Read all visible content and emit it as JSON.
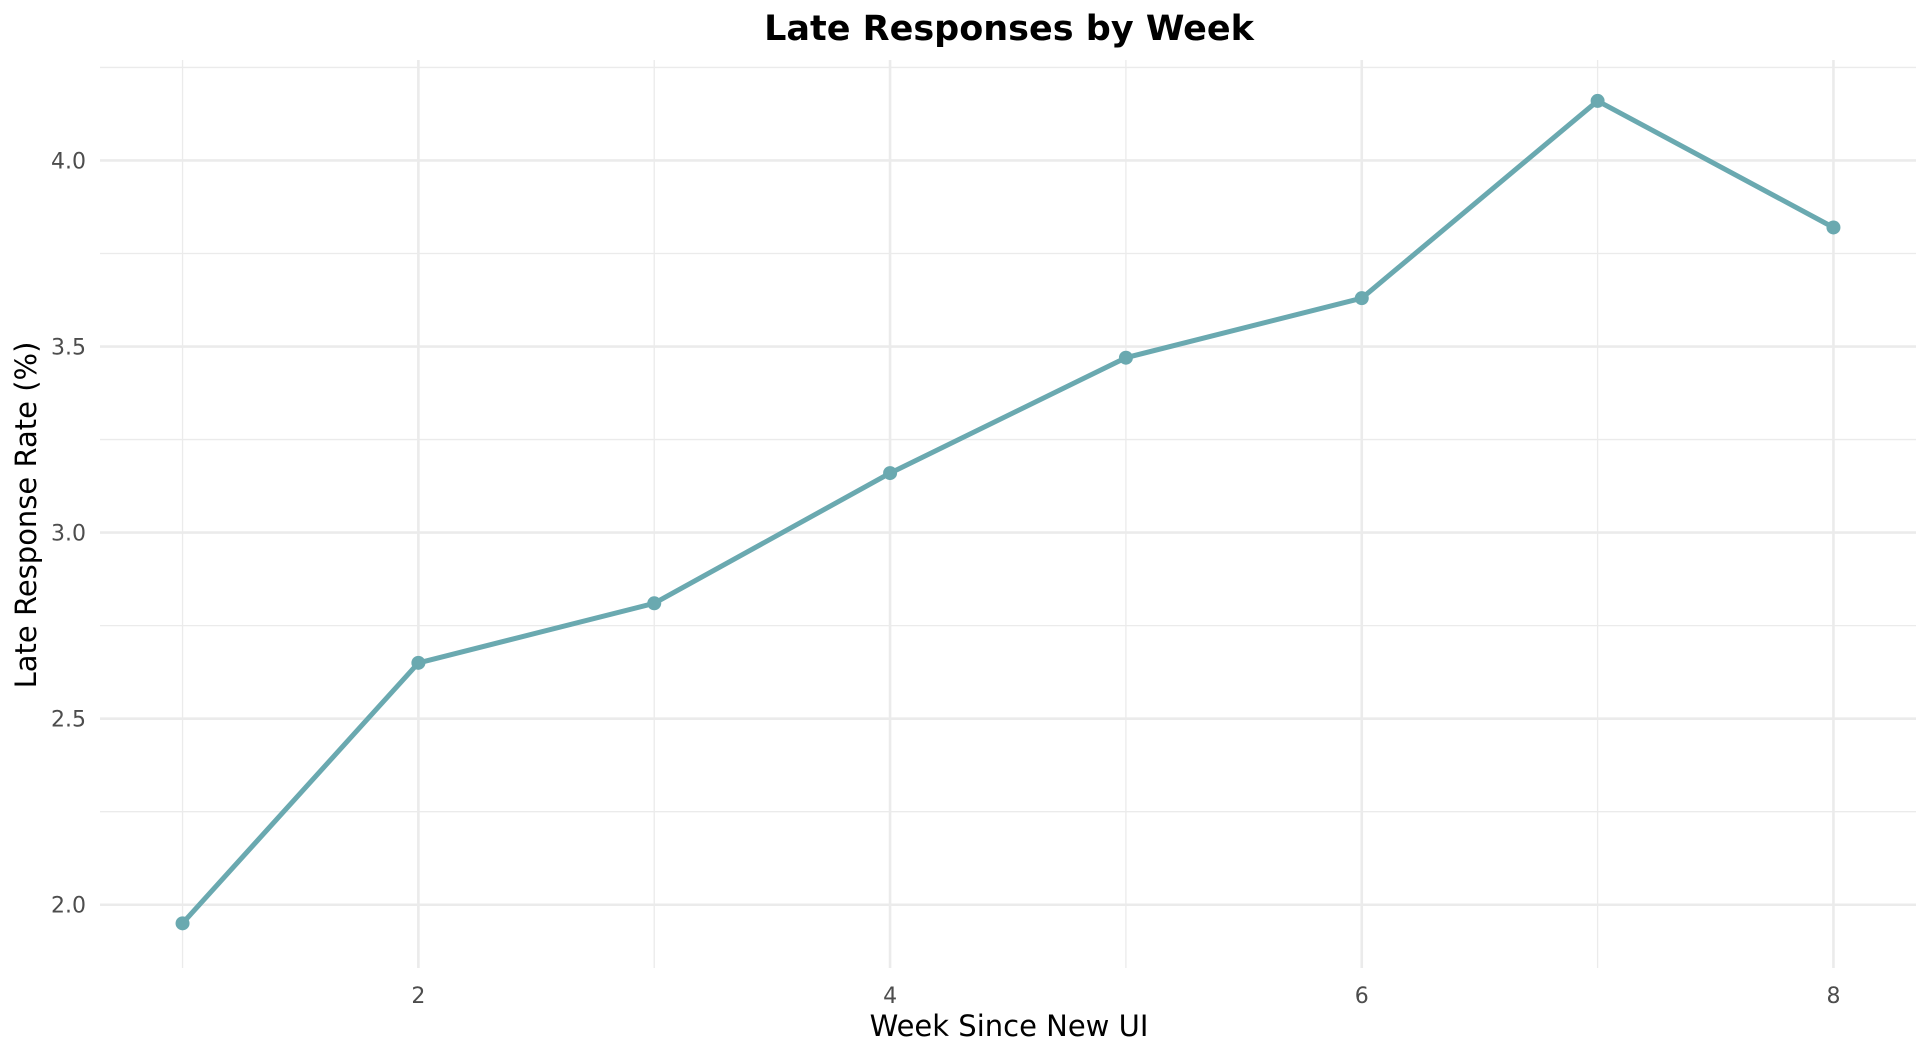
{
  "chart_data": {
    "type": "line",
    "title": "Late Responses by Week",
    "xlabel": "Week Since New UI",
    "ylabel": "Late Response Rate (%)",
    "x": [
      1,
      2,
      3,
      4,
      5,
      6,
      7,
      8
    ],
    "series": [
      {
        "values": [
          1.95,
          2.65,
          2.81,
          3.16,
          3.47,
          3.63,
          4.16,
          3.82
        ],
        "color": "#6aa9b0"
      }
    ],
    "xlim": [
      0.65,
      8.35
    ],
    "ylim": [
      1.83,
      4.27
    ],
    "xticks": [
      2,
      4,
      6,
      8
    ],
    "xtick_labels": [
      "2",
      "4",
      "6",
      "8"
    ],
    "xminor": [
      1,
      3,
      5,
      7
    ],
    "yticks": [
      2.0,
      2.5,
      3.0,
      3.5,
      4.0
    ],
    "ytick_labels": [
      "2.0",
      "2.5",
      "3.0",
      "3.5",
      "4.0"
    ],
    "yminor": [
      2.25,
      2.75,
      3.25,
      3.75,
      4.25
    ],
    "grid": true,
    "legend": "none",
    "background": "#ffffff"
  }
}
